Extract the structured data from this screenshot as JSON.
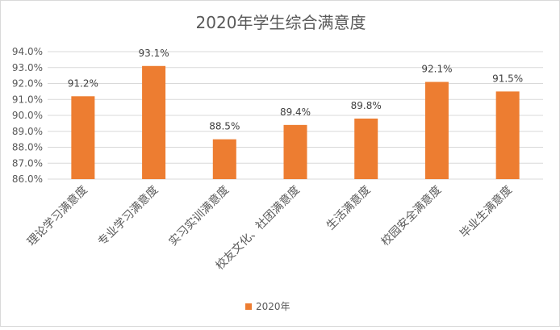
{
  "chart_data": {
    "type": "bar",
    "title": "2020年学生综合满意度",
    "categories": [
      "理论学习满意度",
      "专业学习满意度",
      "实习实训满意度",
      "校友文化、社团满意度",
      "生活满意度",
      "校园安全满意度",
      "毕业生满意度"
    ],
    "series": [
      {
        "name": "2020年",
        "values": [
          91.2,
          93.1,
          88.5,
          89.4,
          89.8,
          92.1,
          91.5
        ],
        "color": "#ed7d31"
      }
    ],
    "data_labels": [
      "91.2%",
      "93.1%",
      "88.5%",
      "89.4%",
      "89.8%",
      "92.1%",
      "91.5%"
    ],
    "ylim": [
      86,
      94
    ],
    "yticks": [
      "86.0%",
      "87.0%",
      "88.0%",
      "89.0%",
      "90.0%",
      "91.0%",
      "92.0%",
      "93.0%",
      "94.0%"
    ],
    "grid": true,
    "legend": "bottom",
    "gridline_color": "#d9d9d9"
  }
}
